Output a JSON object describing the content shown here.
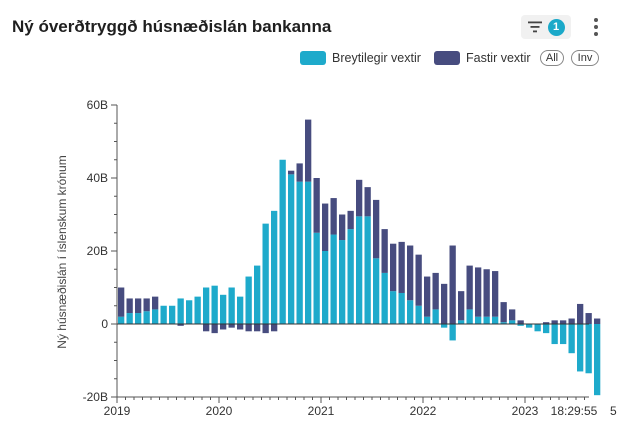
{
  "title": "Ný óverðtryggð húsnæðislán bankanna",
  "filter": {
    "count": "1",
    "icon": "filter-icon"
  },
  "menu": {
    "icon": "more-vertical-icon"
  },
  "legend": {
    "variable": "Breytilegir vextir",
    "fixed": "Fastir vextir",
    "all_label": "All",
    "inv_label": "Inv"
  },
  "colors": {
    "variable": "#1eaacb",
    "fixed": "#474c7f",
    "axis": "#555555"
  },
  "chart_data": {
    "type": "bar",
    "stacked": true,
    "ylabel": "Ný húsnæðislán í íslenskum krónum",
    "ylim": [
      -20,
      60
    ],
    "y_ticks": [
      -20,
      0,
      20,
      40,
      60
    ],
    "y_tick_labels": [
      "-20B",
      "0",
      "20B",
      "40B",
      "60B"
    ],
    "x_ticks": [
      "2019",
      "2020",
      "2021",
      "2022",
      "2023"
    ],
    "x_extra_label": "18:29:55",
    "x_edge_label": "5",
    "months_start": "2019-01",
    "series": [
      {
        "name": "Breytilegir vextir",
        "values": [
          2,
          3,
          3,
          3.5,
          4,
          5,
          5,
          7,
          6.5,
          7.5,
          10,
          10.5,
          8,
          10,
          7.5,
          13,
          16,
          27.5,
          31,
          45,
          41,
          39,
          39,
          25,
          20,
          24.5,
          23,
          26,
          29.5,
          29.5,
          18,
          14,
          9,
          8.5,
          6.5,
          5,
          2,
          4,
          -1,
          -4.5,
          1,
          4,
          2,
          2,
          2,
          0.5,
          1,
          -0.5,
          -1,
          -2,
          -2.5,
          -5.5,
          -5.5,
          -8,
          -13,
          -13.5,
          -19.5
        ]
      },
      {
        "name": "Fastir vextir",
        "values": [
          8,
          4,
          4,
          3.5,
          3.5,
          0,
          0,
          -0.5,
          0,
          0,
          -2,
          -2.5,
          -1.5,
          -1,
          -1.5,
          -2,
          -2,
          -2.5,
          -2,
          0,
          1,
          5,
          17,
          15,
          13,
          10,
          7,
          5,
          10,
          8,
          16,
          12,
          13,
          14,
          15,
          14,
          11,
          10,
          11,
          21.5,
          8,
          12,
          13.5,
          13,
          12.5,
          5.5,
          3,
          1,
          0,
          0,
          0.5,
          1,
          1,
          1.5,
          5.5,
          3,
          1.5
        ]
      }
    ],
    "grid": false,
    "legend_position": "top-right"
  }
}
